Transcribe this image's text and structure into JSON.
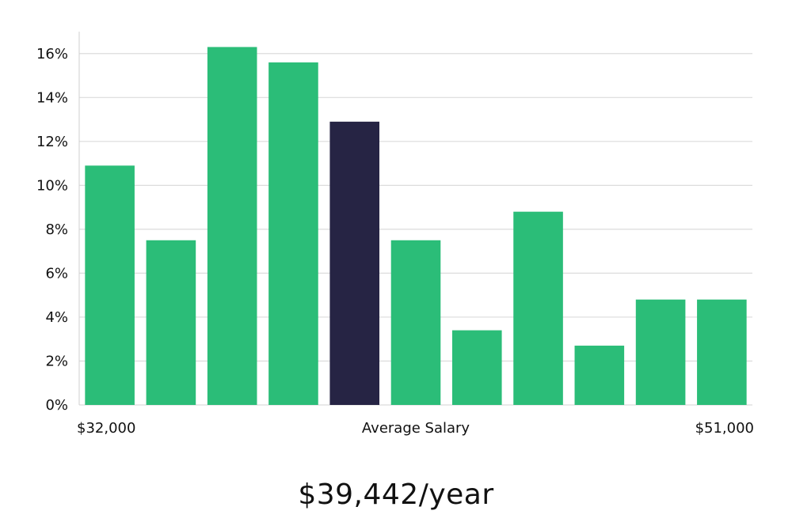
{
  "chart_data": {
    "type": "bar",
    "values": [
      10.9,
      7.5,
      16.3,
      15.6,
      12.9,
      7.5,
      3.4,
      8.8,
      2.7,
      4.8,
      4.8
    ],
    "highlight_index": 4,
    "ylim": [
      0,
      17
    ],
    "y_ticks": [
      0,
      2,
      4,
      6,
      8,
      10,
      12,
      14,
      16
    ],
    "y_tick_format": "percent",
    "grid": true,
    "x_labels": {
      "left": "$32,000",
      "center": "Average Salary",
      "right": "$51,000"
    },
    "colors": {
      "bar": "#2bbd78",
      "highlight": "#262444",
      "grid": "#dcdcdc",
      "axis": "#cfcfcf"
    }
  },
  "summary": {
    "salary": "$39,442/year"
  }
}
